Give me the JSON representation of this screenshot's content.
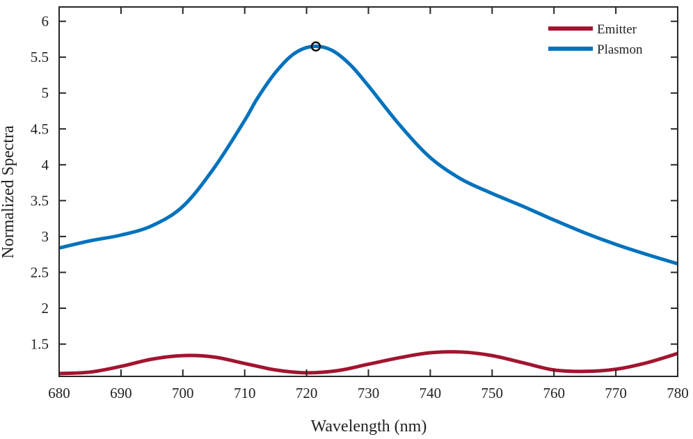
{
  "chart_data": {
    "type": "line",
    "title": "",
    "xlabel": "Wavelength (nm)",
    "ylabel": "Normalized Spectra",
    "xlim": [
      680,
      780
    ],
    "ylim": [
      1.05,
      6.2
    ],
    "x_ticks": [
      680,
      690,
      700,
      710,
      720,
      730,
      740,
      750,
      760,
      770,
      780
    ],
    "y_ticks": [
      1.5,
      2,
      2.5,
      3,
      3.5,
      4,
      4.5,
      5,
      5.5,
      6
    ],
    "y_tick_labels": [
      "1.5",
      "2",
      "2.5",
      "3",
      "3.5",
      "4",
      "4.5",
      "5",
      "5.5",
      "6"
    ],
    "legend_position": "top-right",
    "series": [
      {
        "name": "Emitter",
        "color": "#A2142F",
        "x": [
          680,
          685,
          690,
          695,
          700,
          705,
          710,
          715,
          720,
          725,
          730,
          735,
          740,
          745,
          750,
          755,
          760,
          765,
          770,
          775,
          780
        ],
        "y": [
          1.09,
          1.11,
          1.19,
          1.29,
          1.34,
          1.32,
          1.23,
          1.14,
          1.1,
          1.13,
          1.22,
          1.31,
          1.38,
          1.39,
          1.34,
          1.24,
          1.14,
          1.12,
          1.15,
          1.24,
          1.37
        ]
      },
      {
        "name": "Plasmon",
        "color": "#0072BD",
        "x": [
          680,
          685,
          690,
          695,
          700,
          705,
          710,
          712,
          715,
          718,
          721,
          724,
          727,
          730,
          735,
          740,
          745,
          750,
          755,
          760,
          765,
          770,
          775,
          780
        ],
        "y": [
          2.84,
          2.94,
          3.02,
          3.15,
          3.42,
          3.95,
          4.62,
          4.92,
          5.29,
          5.55,
          5.65,
          5.6,
          5.4,
          5.1,
          4.56,
          4.1,
          3.8,
          3.6,
          3.42,
          3.23,
          3.05,
          2.89,
          2.75,
          2.62
        ]
      }
    ],
    "annotations": [
      {
        "type": "circle-marker",
        "series": "Plasmon",
        "x": 721.5,
        "y": 5.65
      }
    ]
  }
}
